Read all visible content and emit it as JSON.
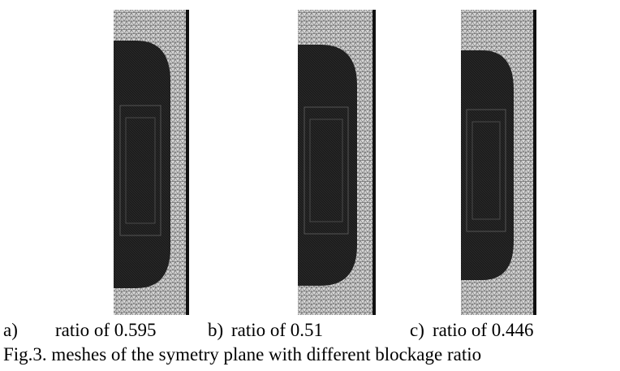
{
  "figure": {
    "panels": [
      {
        "label": "a)",
        "caption": "ratio of 0.595"
      },
      {
        "label": "b)",
        "caption": "ratio of 0.51"
      },
      {
        "label": "c)",
        "caption": "ratio of 0.446"
      }
    ],
    "caption": "Fig.3. meshes of the symetry plane with different blockage ratio"
  }
}
